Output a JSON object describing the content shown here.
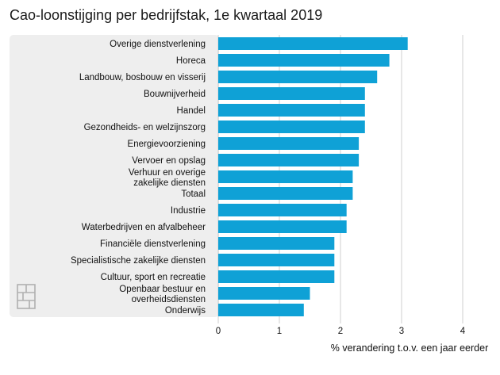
{
  "chart_data": {
    "type": "bar",
    "orientation": "horizontal",
    "title": "Cao-loonstijging per bedrijfstak, 1e kwartaal 2019",
    "xlabel": "% verandering t.o.v. een jaar eerder",
    "ylabel": "",
    "xlim": [
      0,
      4
    ],
    "xticks": [
      "0",
      "1",
      "2",
      "3",
      "4"
    ],
    "grid": "vertical",
    "categories": [
      "Overige dienstverlening",
      "Horeca",
      "Landbouw, bosbouw en visserij",
      "Bouwnijverheid",
      "Handel",
      "Gezondheids- en welzijnszorg",
      "Energievoorziening",
      "Vervoer en opslag",
      "Verhuur en overige zakelijke diensten",
      "Totaal",
      "Industrie",
      "Waterbedrijven en afvalbeheer",
      "Financiële dienstverlening",
      "Specialistische zakelijke diensten",
      "Cultuur, sport en recreatie",
      "Openbaar bestuur en overheidsdiensten",
      "Onderwijs"
    ],
    "values": [
      3.1,
      2.8,
      2.6,
      2.4,
      2.4,
      2.4,
      2.3,
      2.3,
      2.2,
      2.2,
      2.1,
      2.1,
      1.9,
      1.9,
      1.9,
      1.5,
      1.4
    ],
    "bar_color": "#0fa1d6",
    "panel_color": "#eeeeee"
  },
  "logo": {
    "name": "cbs-logo",
    "text": "cbs"
  }
}
